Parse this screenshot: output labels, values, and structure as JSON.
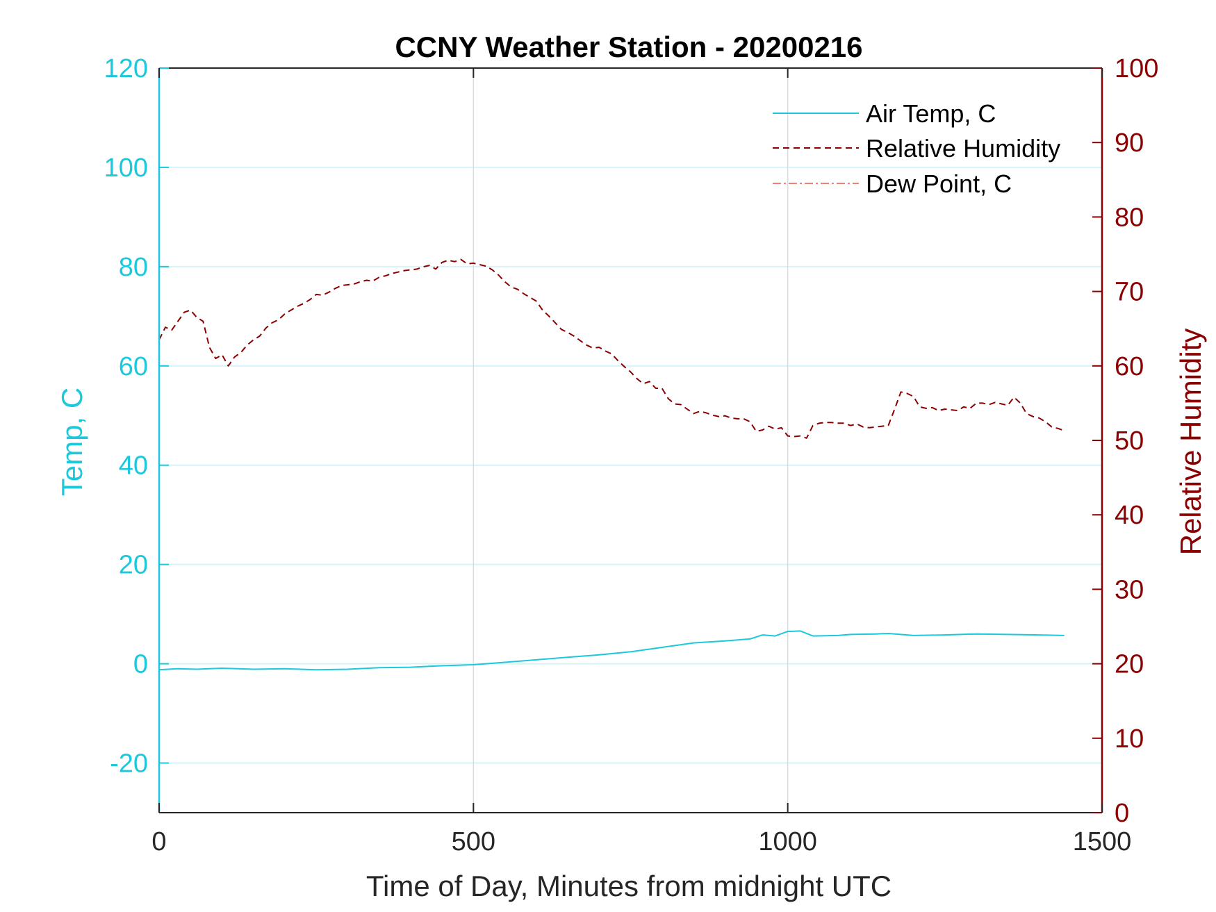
{
  "chart_data": {
    "type": "line",
    "title": "CCNY Weather Station - 20200216",
    "xlabel": "Time of Day, Minutes from midnight UTC",
    "ylabel_left": "Temp, C",
    "ylabel_right": "Relative Humidity",
    "xlim": [
      0,
      1500
    ],
    "ylim_left": [
      -30,
      120
    ],
    "ylim_right": [
      0,
      100
    ],
    "x_ticks": [
      0,
      500,
      1000,
      1500
    ],
    "x_tick_labels": [
      "0",
      "500",
      "1000",
      "1500"
    ],
    "y_left_ticks": [
      -20,
      0,
      20,
      40,
      60,
      80,
      100,
      120
    ],
    "y_left_tick_labels": [
      "-20",
      "0",
      "20",
      "40",
      "60",
      "80",
      "100",
      "120"
    ],
    "y_right_ticks": [
      0,
      10,
      20,
      30,
      40,
      50,
      60,
      70,
      80,
      90,
      100
    ],
    "y_right_tick_labels": [
      "0",
      "10",
      "20",
      "30",
      "40",
      "50",
      "60",
      "70",
      "80",
      "90",
      "100"
    ],
    "grid": true,
    "legend_position": "top-right",
    "colors": {
      "left_axis": "#1cc8db",
      "right_axis": "#8b0000",
      "air_temp": "#1cc8db",
      "humidity": "#8b0000",
      "dew_point": "#f08070",
      "grid_x": "#d5dde6",
      "grid_y": "#d8f3f7"
    },
    "series": [
      {
        "name": "Air Temp, C",
        "axis": "left",
        "style": "solid",
        "x": [
          0,
          30,
          60,
          100,
          150,
          200,
          250,
          300,
          350,
          400,
          430,
          450,
          500,
          550,
          600,
          650,
          700,
          750,
          800,
          850,
          900,
          940,
          960,
          980,
          1000,
          1020,
          1040,
          1080,
          1100,
          1140,
          1160,
          1200,
          1250,
          1300,
          1350,
          1400,
          1440
        ],
        "values": [
          -1.2,
          -1.0,
          -1.1,
          -0.9,
          -1.1,
          -1.0,
          -1.2,
          -1.1,
          -0.8,
          -0.7,
          -0.5,
          -0.4,
          -0.2,
          0.3,
          0.8,
          1.3,
          1.8,
          2.4,
          3.3,
          4.2,
          4.6,
          5.0,
          5.8,
          5.6,
          6.5,
          6.6,
          5.6,
          5.7,
          5.9,
          6.0,
          6.1,
          5.7,
          5.8,
          6.0,
          5.9,
          5.8,
          5.7
        ]
      },
      {
        "name": "Relative Humidity",
        "axis": "right",
        "style": "dashed",
        "x": [
          0,
          10,
          20,
          30,
          40,
          50,
          60,
          70,
          80,
          90,
          100,
          110,
          120,
          130,
          140,
          150,
          160,
          170,
          180,
          190,
          200,
          210,
          220,
          230,
          240,
          250,
          260,
          270,
          280,
          290,
          300,
          310,
          320,
          330,
          340,
          350,
          360,
          370,
          380,
          390,
          400,
          410,
          420,
          430,
          440,
          450,
          460,
          470,
          480,
          490,
          500,
          510,
          520,
          530,
          540,
          550,
          560,
          570,
          580,
          590,
          600,
          610,
          620,
          630,
          640,
          650,
          660,
          670,
          680,
          690,
          700,
          710,
          720,
          730,
          740,
          750,
          760,
          770,
          780,
          790,
          800,
          810,
          820,
          830,
          840,
          850,
          860,
          870,
          880,
          890,
          900,
          910,
          920,
          930,
          940,
          950,
          960,
          970,
          980,
          990,
          1000,
          1010,
          1020,
          1030,
          1040,
          1050,
          1060,
          1070,
          1080,
          1090,
          1100,
          1110,
          1120,
          1130,
          1140,
          1150,
          1160,
          1170,
          1180,
          1190,
          1200,
          1210,
          1220,
          1230,
          1240,
          1250,
          1260,
          1270,
          1280,
          1290,
          1300,
          1310,
          1320,
          1330,
          1340,
          1350,
          1360,
          1370,
          1380,
          1390,
          1400,
          1410,
          1420,
          1430,
          1440
        ],
        "values": [
          63.5,
          65.2,
          64.8,
          66.0,
          67.2,
          67.5,
          66.5,
          66.0,
          62.5,
          61.0,
          61.5,
          60.0,
          61.2,
          61.8,
          62.8,
          63.5,
          64.0,
          65.1,
          65.8,
          66.2,
          67.0,
          67.5,
          68.0,
          68.4,
          68.9,
          69.6,
          69.5,
          69.9,
          70.4,
          70.8,
          70.9,
          71.0,
          71.3,
          71.5,
          71.4,
          71.9,
          72.1,
          72.4,
          72.6,
          72.8,
          72.9,
          73.0,
          73.3,
          73.5,
          73.0,
          73.9,
          74.2,
          74.0,
          74.3,
          73.7,
          73.8,
          73.6,
          73.4,
          72.9,
          72.2,
          71.3,
          70.6,
          70.3,
          69.7,
          69.2,
          68.7,
          67.5,
          66.7,
          65.8,
          64.9,
          64.5,
          64.0,
          63.4,
          62.8,
          62.4,
          62.5,
          62.0,
          61.6,
          60.7,
          59.9,
          59.2,
          58.3,
          57.6,
          57.9,
          57.0,
          57.0,
          55.6,
          54.9,
          54.8,
          54.2,
          53.6,
          53.9,
          53.7,
          53.4,
          53.2,
          53.3,
          53.0,
          52.9,
          52.9,
          52.5,
          51.2,
          51.4,
          51.9,
          51.5,
          51.7,
          50.6,
          50.5,
          50.6,
          50.3,
          52.0,
          52.3,
          52.4,
          52.4,
          52.3,
          52.3,
          52.0,
          52.2,
          51.8,
          51.7,
          51.8,
          51.9,
          52.0,
          54.2,
          56.5,
          56.3,
          55.9,
          54.5,
          54.3,
          54.4,
          54.0,
          54.2,
          54.1,
          54.0,
          54.5,
          54.3,
          55.0,
          55.0,
          54.8,
          55.1,
          54.9,
          54.7,
          55.8,
          55.0,
          53.6,
          53.2,
          53.0,
          52.5,
          51.8,
          51.6,
          51.3
        ]
      },
      {
        "name": "Dew Point, C",
        "axis": "left",
        "style": "dash-dot",
        "x": [],
        "values": []
      }
    ]
  }
}
